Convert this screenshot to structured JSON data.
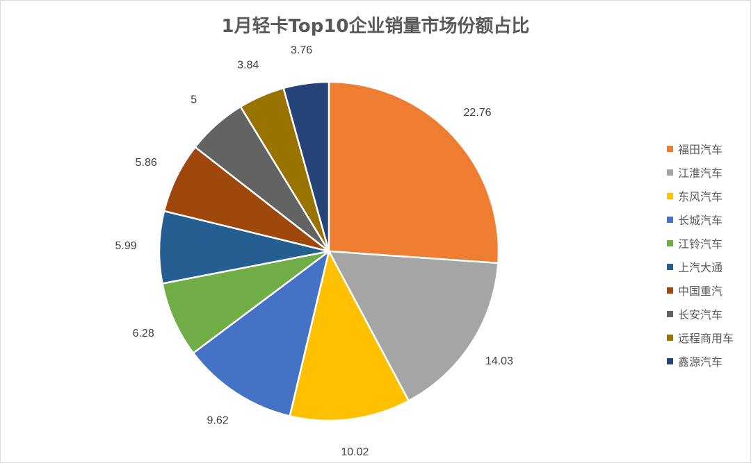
{
  "chart_data": {
    "type": "pie",
    "title": "1月轻卡Top10企业销量市场份额占比",
    "legend_position": "right",
    "categories": [
      "福田汽车",
      "江淮汽车",
      "东风汽车",
      "长城汽车",
      "江铃汽车",
      "上汽大通",
      "中国重汽",
      "长安汽车",
      "远程商用车",
      "鑫源汽车"
    ],
    "values": [
      22.76,
      14.03,
      10.02,
      9.62,
      6.28,
      5.99,
      5.86,
      5,
      3.84,
      3.76
    ],
    "value_labels": [
      "22.76",
      "14.03",
      "10.02",
      "9.62",
      "6.28",
      "5.99",
      "5.86",
      "5",
      "3.84",
      "3.76"
    ],
    "colors": [
      "#ED7D31",
      "#A5A5A5",
      "#FFC000",
      "#4472C4",
      "#70AD47",
      "#255E91",
      "#9E480E",
      "#636363",
      "#997300",
      "#264478"
    ]
  }
}
